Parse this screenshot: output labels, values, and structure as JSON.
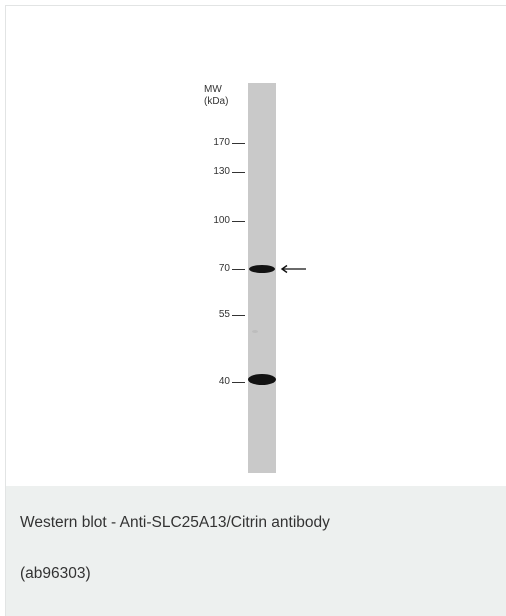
{
  "figure": {
    "mw_title_line1": "MW",
    "mw_title_line2": "(kDa)",
    "markers": [
      "170",
      "130",
      "100",
      "70",
      "55",
      "40"
    ],
    "lane_color": "#c9c9c9",
    "band_color": "#121212",
    "bands_kDa": [
      70,
      40
    ],
    "arrow_target_kDa": 70
  },
  "caption": {
    "line1": "Western blot - Anti-SLC25A13/Citrin antibody",
    "line2": "(ab96303)"
  },
  "colors": {
    "caption_background": "#edf0ef",
    "border": "#e2e4e4",
    "text": "#333333"
  }
}
